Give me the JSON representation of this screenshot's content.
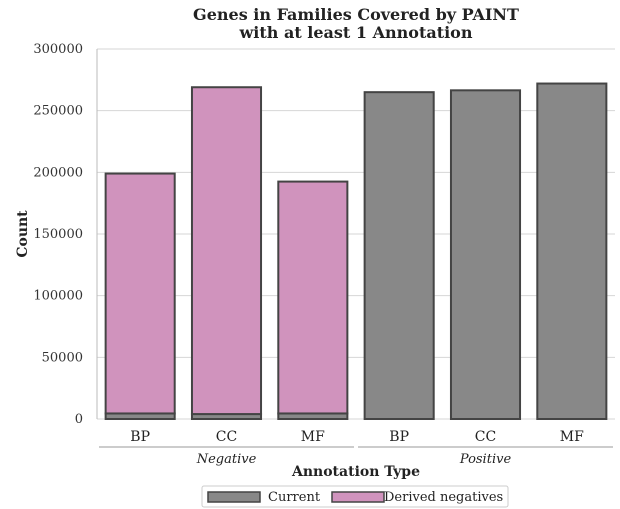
{
  "chart_data": {
    "type": "bar",
    "stacked": true,
    "title_lines": [
      "Genes in Families Covered by PAINT",
      "with at least 1 Annotation"
    ],
    "xlabel": "Annotation Type",
    "ylabel": "Count",
    "ylim": [
      0,
      300000
    ],
    "yticks": [
      0,
      50000,
      100000,
      150000,
      200000,
      250000,
      300000
    ],
    "grid": "horizontal",
    "groups": [
      {
        "label": "Negative",
        "categories": [
          "BP",
          "CC",
          "MF"
        ]
      },
      {
        "label": "Positive",
        "categories": [
          "BP",
          "CC",
          "MF"
        ]
      }
    ],
    "categories": [
      "BP",
      "CC",
      "MF",
      "BP",
      "CC",
      "MF"
    ],
    "series": [
      {
        "name": "Current",
        "color": "#888888",
        "values": [
          4500,
          4000,
          4500,
          265000,
          266500,
          272000
        ]
      },
      {
        "name": "Derived negatives",
        "color": "#d093bd",
        "values": [
          194500,
          265000,
          188000,
          0,
          0,
          0
        ]
      }
    ],
    "legend_position": "bottom-center"
  }
}
